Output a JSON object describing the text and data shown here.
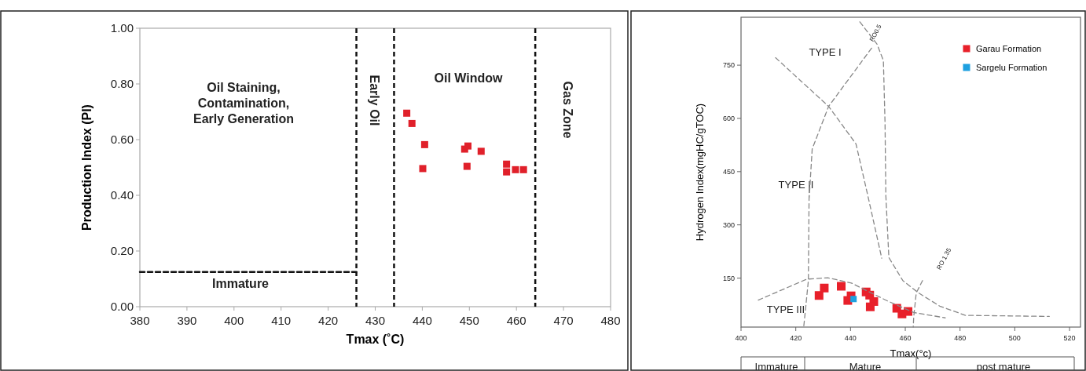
{
  "chart_data": [
    {
      "type": "scatter",
      "xlabel": "Tmax (˚C)",
      "ylabel": "Production Index (PI)",
      "xlim": [
        380,
        480
      ],
      "ylim": [
        0,
        1
      ],
      "xticks": [
        380,
        390,
        400,
        410,
        420,
        430,
        440,
        450,
        460,
        470,
        480
      ],
      "yticks": [
        {
          "value": 0,
          "label": "0.00"
        },
        {
          "value": 0.2,
          "label": "0.20"
        },
        {
          "value": 0.4,
          "label": "0.40"
        },
        {
          "value": 0.6,
          "label": "0.60"
        },
        {
          "value": 0.8,
          "label": "0.80"
        },
        {
          "value": 1,
          "label": "1.00"
        }
      ],
      "grid": false,
      "marker": "square",
      "series": [
        {
          "color": "#e0202a",
          "x": [
            436.7,
            437.8,
            440.5,
            440.1,
            449.0,
            449.7,
            449.5,
            452.5,
            457.9,
            457.9,
            459.8,
            461.5
          ],
          "values": [
            0.695,
            0.658,
            0.582,
            0.496,
            0.566,
            0.577,
            0.504,
            0.558,
            0.512,
            0.484,
            0.492,
            0.492
          ]
        },
        {
          "type": "line",
          "color": "#111111",
          "line_style": "dashed",
          "marker": "none",
          "x": [
            380,
            426
          ],
          "values": [
            0.125,
            0.125
          ]
        }
      ],
      "ref_lines": [
        {
          "axis": "x",
          "value": 426,
          "color": "#111111",
          "line_style": "dashed"
        },
        {
          "axis": "x",
          "value": 434,
          "color": "#111111",
          "line_style": "dashed"
        },
        {
          "axis": "x",
          "value": 464,
          "color": "#111111",
          "line_style": "dashed"
        }
      ],
      "annotations": [
        "Oil Staining,\nContamination,\nEarly Generation",
        "Immature",
        "Early Oil",
        "Oil Window",
        "Gas Zone"
      ]
    },
    {
      "type": "scatter",
      "xlabel": "Tmax(°c)",
      "ylabel": "Hydrogen Index(mgHC/gTOC)",
      "xlim": [
        400,
        524
      ],
      "ylim": [
        12,
        885
      ],
      "xticks": [
        400,
        420,
        440,
        460,
        480,
        500,
        520
      ],
      "yticks": [
        150,
        300,
        450,
        600,
        750
      ],
      "grid": false,
      "marker": "square",
      "legend": "top right",
      "series": [
        {
          "name": "Garau Formation",
          "color": "#e8202a",
          "x": [
            428.5,
            430.4,
            436.6,
            440.2,
            439.0,
            445.7,
            447.0,
            448.5,
            447.2,
            456.9,
            458.8,
            461.0
          ],
          "values": [
            101,
            122,
            127,
            100,
            87,
            111,
            102,
            84,
            69,
            65,
            49,
            56
          ]
        },
        {
          "name": "Sargelu Formation",
          "color": "#1ea0e0",
          "x": [
            441.1
          ],
          "values": [
            91
          ]
        },
        {
          "type": "line",
          "color": "#888888",
          "line_style": "dashed",
          "marker": "none",
          "x": [
            412.6,
            432,
            442,
            446.3,
            451.4
          ],
          "values": [
            771,
            634,
            528,
            383,
            206
          ]
        },
        {
          "type": "line",
          "color": "#888888",
          "line_style": "dashed",
          "marker": "none",
          "x": [
            443.4,
            449.7,
            452,
            452.6,
            452.9,
            454,
            459.1,
            464.9,
            472.6,
            482,
            512.6
          ],
          "values": [
            872,
            809,
            763,
            588,
            383,
            208,
            143,
            108,
            71,
            45,
            42
          ]
        },
        {
          "type": "line",
          "color": "#888888",
          "line_style": "dashed",
          "marker": "none",
          "x": [
            447.7,
            432,
            426,
            424.9,
            424.9,
            424.6,
            422.9
          ],
          "values": [
            798,
            634,
            514,
            376,
            420,
            143,
            12
          ]
        },
        {
          "type": "line",
          "color": "#888888",
          "line_style": "dashed",
          "marker": "none",
          "x": [
            406.3,
            424,
            431.7,
            440.3,
            453.4,
            463.1,
            474.6
          ],
          "values": [
            88,
            147,
            151,
            136,
            86,
            53,
            38
          ]
        },
        {
          "type": "line",
          "color": "#888888",
          "line_style": "dashed",
          "marker": "none",
          "x": [
            466.3,
            464,
            463.1,
            462.9
          ],
          "values": [
            143,
            108,
            42,
            12
          ]
        }
      ],
      "annotations": [
        "TYPE I",
        "TYPE II",
        "TYPE III",
        "RO0.5",
        "RO 1.35",
        "Immature",
        "Mature",
        "post mature"
      ]
    }
  ]
}
